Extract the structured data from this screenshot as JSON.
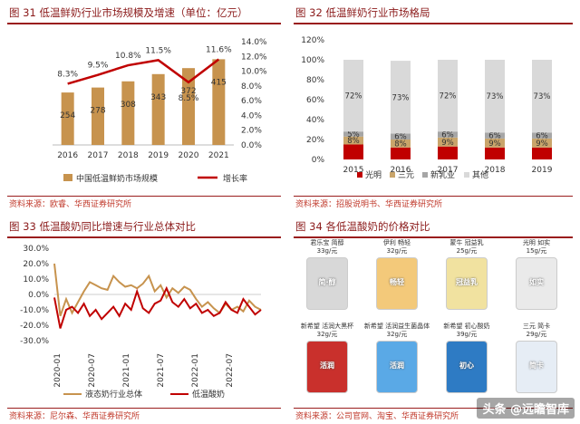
{
  "panels": {
    "p31": {
      "title": "图 31 低温鲜奶行业市场规模及增速（单位：亿元）",
      "source": "资料来源：欧睿、华西证券研究所",
      "legend": [
        "中国低温鲜奶市场规模",
        "增长率"
      ]
    },
    "p32": {
      "title": "图 32 低温鲜奶行业市场格局",
      "source": "资料来源：招股说明书、华西证券研究所",
      "legend": [
        "光明",
        "三元",
        "新乳业",
        "其他"
      ]
    },
    "p33": {
      "title": "图 33  低温酸奶同比增速与行业总体对比",
      "source": "资料来源：尼尔森、华西证券研究所",
      "legend": [
        "液态奶行业总体",
        "低温酸奶"
      ]
    },
    "p34": {
      "title": "图 34 各低温酸奶的价格对比",
      "source": "资料来源：公司官网、淘宝、华西证券研究所",
      "products": [
        {
          "label": "君乐宝 简醇",
          "price": "33g/元",
          "color": "#d8d8d8",
          "text": "简·醇"
        },
        {
          "label": "伊利 畅轻",
          "price": "32g/元",
          "color": "#f3c97a",
          "text": "畅轻"
        },
        {
          "label": "蒙牛 冠益乳",
          "price": "25g/元",
          "color": "#f1e2a0",
          "text": "冠益乳"
        },
        {
          "label": "光明 如实",
          "price": "15g/元",
          "color": "#eaeaea",
          "text": "如实"
        },
        {
          "label": "新希望 活润大黑杯",
          "price": "32g/元",
          "color": "#c9302c",
          "text": "活润"
        },
        {
          "label": "新希望 活润益生菌晶体",
          "price": "32g/元",
          "color": "#5aa9e6",
          "text": "活润"
        },
        {
          "label": "新希望 初心酸奶",
          "price": "39g/元",
          "color": "#2e7bc4",
          "text": "初心"
        },
        {
          "label": "三元 简卡",
          "price": "29g/元",
          "color": "#e6edf5",
          "text": "简卡"
        }
      ]
    }
  },
  "watermark": "头条 @远瞻智库",
  "colors": {
    "accent": "#c0392b",
    "bar": "#c7934e",
    "line": "#c00000",
    "grey": "#d9d9d9",
    "olive": "#c9a56b"
  },
  "chart_data": [
    {
      "type": "bar",
      "categories": [
        "2016",
        "2017",
        "2018",
        "2019",
        "2020",
        "2021"
      ],
      "series": [
        {
          "name": "中国低温鲜奶市场规模",
          "values": [
            254,
            278,
            308,
            343,
            372,
            415
          ]
        },
        {
          "name": "增长率",
          "type": "line",
          "values": [
            8.3,
            9.5,
            10.8,
            11.5,
            8.5,
            11.6
          ]
        }
      ],
      "ylim_right": [
        0,
        14
      ],
      "right_ticks": [
        "0.0%",
        "2.0%",
        "4.0%",
        "6.0%",
        "8.0%",
        "10.0%",
        "12.0%",
        "14.0%"
      ],
      "value_labels": [
        "254",
        "278",
        "308",
        "343",
        "372",
        "415"
      ],
      "rate_labels": [
        "8.3%",
        "9.5%",
        "10.8%",
        "11.5%",
        "8.5%",
        "11.6%"
      ]
    },
    {
      "type": "bar",
      "stacked": true,
      "categories": [
        "2015",
        "2016",
        "2017",
        "2018",
        "2019"
      ],
      "series": [
        {
          "name": "光明",
          "values": [
            15,
            12,
            13,
            12,
            12
          ]
        },
        {
          "name": "三元",
          "values": [
            8,
            8,
            9,
            9,
            9
          ]
        },
        {
          "name": "新乳业",
          "values": [
            5,
            6,
            6,
            6,
            6
          ]
        },
        {
          "name": "其他",
          "values": [
            72,
            73,
            72,
            73,
            73
          ]
        }
      ],
      "segment_labels": [
        [
          "",
          "8%",
          "5%",
          "72%"
        ],
        [
          "",
          "8%",
          "6%",
          "73%"
        ],
        [
          "",
          "9%",
          "6%",
          "72%"
        ],
        [
          "",
          "9%",
          "6%",
          "73%"
        ],
        [
          "",
          "9%",
          "6%",
          "73%"
        ]
      ],
      "ylim": [
        0,
        120
      ],
      "y_ticks": [
        "0%",
        "20%",
        "40%",
        "60%",
        "80%",
        "100%",
        "120%"
      ]
    },
    {
      "type": "line",
      "x_ticks": [
        "2020-01",
        "2020-07",
        "2021-01",
        "2021-07",
        "2022-01",
        "2022-07"
      ],
      "ylim": [
        -30,
        30
      ],
      "y_ticks": [
        "30.0%",
        "20.0%",
        "10.0%",
        "0.0%",
        "-10.0%",
        "-20.0%",
        "-30.0%"
      ],
      "series": [
        {
          "name": "液态奶行业总体",
          "values": [
            20,
            -14,
            -3,
            -12,
            -5,
            2,
            8,
            6,
            4,
            3,
            12,
            8,
            5,
            6,
            4,
            7,
            12,
            2,
            6,
            -2,
            4,
            1,
            5,
            3,
            -3,
            -8,
            -5,
            -9,
            -12,
            -6,
            -10,
            -8,
            -11,
            -4,
            -8,
            -10
          ]
        },
        {
          "name": "低温酸奶",
          "values": [
            -2,
            -22,
            -10,
            -8,
            -12,
            -6,
            -14,
            -10,
            -16,
            -12,
            -8,
            -14,
            -6,
            -10,
            2,
            -9,
            -12,
            -6,
            -4,
            4,
            -5,
            -8,
            -3,
            -9,
            -6,
            -12,
            -10,
            -14,
            -12,
            -5,
            -10,
            -12,
            -3,
            -8,
            -13,
            -10
          ]
        }
      ]
    }
  ]
}
